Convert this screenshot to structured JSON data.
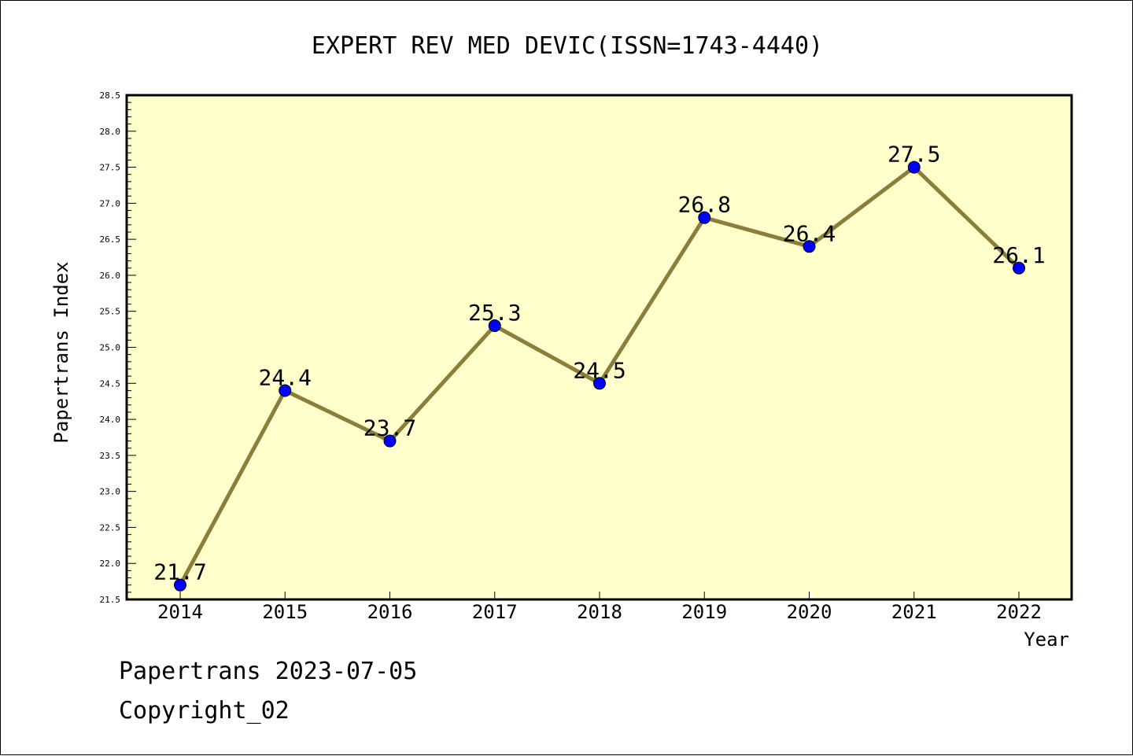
{
  "chart_data": {
    "type": "line",
    "title": "EXPERT REV MED DEVIC(ISSN=1743-4440)",
    "xlabel": "Year",
    "ylabel": "Papertrans Index",
    "x": [
      "2014",
      "2015",
      "2016",
      "2017",
      "2018",
      "2019",
      "2020",
      "2021",
      "2022"
    ],
    "series": [
      {
        "values": [
          21.7,
          24.4,
          23.7,
          25.3,
          24.5,
          26.8,
          26.4,
          27.5,
          26.1
        ],
        "labels": [
          "21.7",
          "24.4",
          "23.7",
          "25.3",
          "24.5",
          "26.8",
          "26.4",
          "27.5",
          "26.1"
        ]
      }
    ],
    "ylim": [
      21.5,
      28.5
    ],
    "yticks": [
      "21.5",
      "22.0",
      "22.5",
      "23.0",
      "23.5",
      "24.0",
      "24.5",
      "25.0",
      "25.5",
      "26.0",
      "26.5",
      "27.0",
      "27.5",
      "28.0",
      "28.5"
    ],
    "grid": false,
    "colors": {
      "plot_background": "#ffffcc",
      "line": "#8b7e3a",
      "marker": "#0000ff"
    }
  },
  "footer": {
    "line1": "Papertrans 2023-07-05",
    "line2": "Copyright_02"
  }
}
